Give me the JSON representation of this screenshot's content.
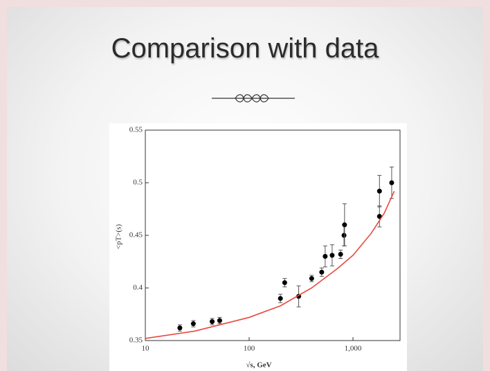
{
  "slide": {
    "title": "Comparison with data"
  },
  "chart_data": {
    "type": "scatter",
    "xlabel": "√s, GeV",
    "ylabel": "<pT>(s)",
    "xscale": "log",
    "xlim": [
      10,
      2840
    ],
    "ylim": [
      0.35,
      0.55
    ],
    "xticks": [
      10,
      100,
      {
        "value": 1000,
        "label": "1,000"
      }
    ],
    "yticks": [
      0.35,
      0.4,
      0.45,
      0.5,
      0.55
    ],
    "series": [
      {
        "kind": "points",
        "color": "#000000",
        "x": [
          21.5,
          29,
          44,
          52,
          200,
          220,
          300,
          400,
          500,
          540,
          630,
          760,
          820,
          830,
          1800,
          1800,
          2360
        ],
        "values": [
          0.362,
          0.366,
          0.368,
          0.369,
          0.39,
          0.405,
          0.392,
          0.409,
          0.415,
          0.43,
          0.431,
          0.432,
          0.45,
          0.46,
          0.468,
          0.492,
          0.5
        ],
        "errors": [
          0.003,
          0.003,
          0.003,
          0.003,
          0.004,
          0.004,
          0.01,
          0.003,
          0.004,
          0.01,
          0.01,
          0.004,
          0.01,
          0.02,
          0.01,
          0.015,
          0.015
        ]
      },
      {
        "kind": "curve",
        "color": "#e8483c",
        "x": [
          10,
          30,
          100,
          200,
          400,
          700,
          1000,
          1500,
          2000,
          2500
        ],
        "values": [
          0.352,
          0.359,
          0.372,
          0.383,
          0.4,
          0.418,
          0.431,
          0.452,
          0.471,
          0.492
        ]
      }
    ]
  }
}
